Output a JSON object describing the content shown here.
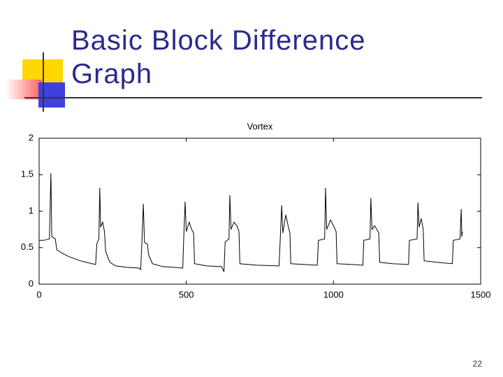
{
  "slide_title": "Basic Block Difference Graph",
  "page_number": "22",
  "chart_data": {
    "type": "line",
    "title": "Vortex",
    "x": [
      0,
      15,
      35,
      40,
      43,
      55,
      60,
      80,
      100,
      120,
      140,
      160,
      180,
      192,
      196,
      203,
      206,
      209,
      216,
      222,
      226,
      240,
      260,
      300,
      340,
      345,
      349,
      354,
      358,
      368,
      372,
      385,
      420,
      460,
      488,
      491,
      496,
      500,
      510,
      518,
      525,
      528,
      570,
      620,
      628,
      632,
      645,
      648,
      652,
      662,
      672,
      679,
      682,
      740,
      815,
      819,
      824,
      828,
      838,
      846,
      852,
      855,
      900,
      945,
      949,
      970,
      973,
      977,
      990,
      1000,
      1009,
      1012,
      1060,
      1100,
      1103,
      1124,
      1127,
      1131,
      1140,
      1154,
      1157,
      1200,
      1255,
      1258,
      1284,
      1287,
      1291,
      1298,
      1305,
      1308,
      1350,
      1404,
      1407,
      1430,
      1434,
      1436,
      1438
    ],
    "values": [
      0.6,
      0.6,
      0.62,
      1.52,
      0.65,
      0.62,
      0.47,
      0.42,
      0.38,
      0.35,
      0.32,
      0.3,
      0.28,
      0.27,
      0.55,
      0.62,
      1.32,
      0.78,
      0.85,
      0.72,
      0.45,
      0.3,
      0.25,
      0.23,
      0.22,
      0.2,
      0.55,
      1.1,
      0.57,
      0.55,
      0.4,
      0.28,
      0.24,
      0.23,
      0.22,
      0.6,
      1.13,
      0.72,
      0.85,
      0.75,
      0.7,
      0.28,
      0.25,
      0.24,
      0.17,
      0.58,
      0.62,
      1.22,
      0.75,
      0.85,
      0.8,
      0.72,
      0.28,
      0.26,
      0.25,
      0.6,
      1.08,
      0.7,
      0.95,
      0.8,
      0.7,
      0.28,
      0.27,
      0.26,
      0.6,
      0.62,
      1.32,
      0.75,
      0.88,
      0.8,
      0.72,
      0.28,
      0.27,
      0.26,
      0.6,
      0.62,
      1.18,
      0.75,
      0.8,
      0.7,
      0.3,
      0.28,
      0.27,
      0.6,
      0.62,
      1.12,
      0.78,
      0.9,
      0.75,
      0.32,
      0.3,
      0.28,
      0.6,
      0.62,
      1.03,
      0.65,
      0.72
    ],
    "color": "#000000",
    "xlim": [
      0,
      1500
    ],
    "xticks": [
      0,
      500,
      1000,
      1500
    ],
    "ylim": [
      0,
      2
    ],
    "yticks": [
      0,
      0.5,
      1,
      1.5,
      2
    ],
    "grid": false
  }
}
